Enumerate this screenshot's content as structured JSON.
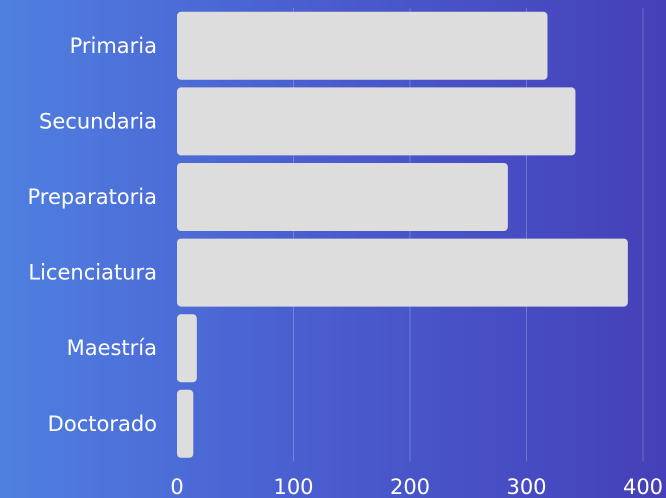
{
  "chart_data": {
    "type": "bar",
    "orientation": "horizontal",
    "categories": [
      "Primaria",
      "Secundaria",
      "Preparatoria",
      "Licenciatura",
      "Maestría",
      "Doctorado"
    ],
    "values": [
      318,
      342,
      284,
      387,
      17,
      14
    ],
    "x_ticks": [
      "0",
      "100",
      "200",
      "300",
      "400"
    ],
    "xlim": [
      0,
      400
    ],
    "grid": true,
    "legend": "none",
    "colors": {
      "bar": "#dddddd",
      "background_start": "#4f80e0",
      "background_end": "#4540b8",
      "text": "#ffffff"
    }
  }
}
